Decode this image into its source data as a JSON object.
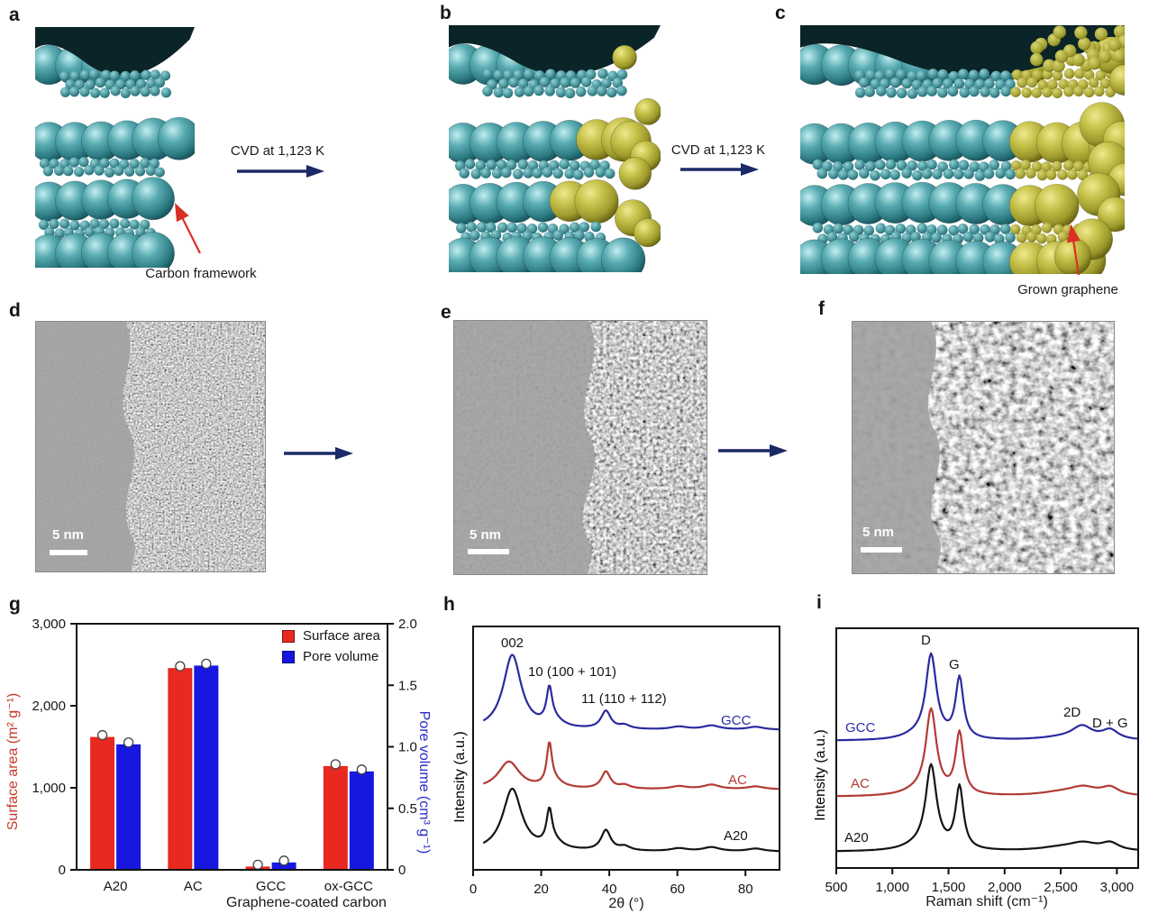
{
  "figure": {
    "panel_labels": {
      "a": "a",
      "b": "b",
      "c": "c",
      "d": "d",
      "e": "e",
      "f": "f",
      "g": "g",
      "h": "h",
      "i": "i"
    }
  },
  "schematic": {
    "cvd_arrow_1_label": "CVD at 1,123 K",
    "cvd_arrow_2_label": "CVD at 1,123 K",
    "carbon_framework_label": "Carbon framework",
    "grown_graphene_label": "Grown graphene",
    "colors": {
      "carbon_teal": "#4a9ca2",
      "carbon_teal_dark": "#1d606a",
      "graphene_yellow": "#b5b332",
      "graphene_yellow_dark": "#77750f",
      "process_arrow_navy": "#1b2a66",
      "annotation_arrow_red": "#d93025"
    }
  },
  "tem_panels": {
    "d": {
      "scale_bar_label": "5 nm"
    },
    "e": {
      "scale_bar_label": "5 nm"
    },
    "f": {
      "scale_bar_label": "5 nm"
    }
  },
  "chart_data": [
    {
      "id": "g",
      "type": "bar",
      "categories": [
        "A20",
        "AC",
        "GCC",
        "ox-GCC"
      ],
      "xlabel": "Graphene-coated carbon",
      "left_axis": {
        "label": "Surface area (m² g⁻¹)",
        "tick_labels": [
          "0",
          "1,000",
          "2,000",
          "3,000"
        ],
        "tick_values": [
          0,
          1000,
          2000,
          3000
        ],
        "range": [
          0,
          3000
        ],
        "label_color": "#c43a28"
      },
      "right_axis": {
        "label": "Pore volume (cm³ g⁻¹)",
        "tick_labels": [
          "0",
          "0.5",
          "1.0",
          "1.5",
          "2.0"
        ],
        "tick_values": [
          0,
          0.5,
          1.0,
          1.5,
          2.0
        ],
        "range": [
          0,
          2
        ],
        "label_color": "#2a2ac8"
      },
      "legend": [
        {
          "label": "Surface area",
          "color": "#e8291f"
        },
        {
          "label": "Pore volume",
          "color": "#1717e0"
        }
      ],
      "series": [
        {
          "name": "Surface area",
          "axis": "left",
          "color": "#e8291f",
          "values": [
            1620,
            2460,
            40,
            1265
          ]
        },
        {
          "name": "Pore volume",
          "axis": "right",
          "color": "#1717e0",
          "values": [
            1.02,
            1.66,
            0.06,
            0.8
          ]
        }
      ]
    },
    {
      "id": "h",
      "type": "line",
      "xlabel": "2θ (°)",
      "ylabel": "Intensity (a.u.)",
      "xtick_labels": [
        "0",
        "20",
        "40",
        "60",
        "80"
      ],
      "xtick_values": [
        0,
        20,
        40,
        60,
        80
      ],
      "xrange": [
        0,
        90
      ],
      "peak_annotations": [
        "002",
        "10 (100 + 101)",
        "11 (110 + 112)"
      ],
      "series": [
        {
          "name": "GCC",
          "color": "#2a2ba0",
          "peaks": [
            [
              11.5,
              3.2,
              0.92
            ],
            [
              22.4,
              1.0,
              0.42
            ],
            [
              24.0,
              3.0,
              0.08
            ],
            [
              39.0,
              1.7,
              0.22
            ],
            [
              44.5,
              2.0,
              0.045
            ],
            [
              60.5,
              3.0,
              0.035
            ],
            [
              70.0,
              3.0,
              0.05
            ],
            [
              83.0,
              3.0,
              0.035
            ]
          ]
        },
        {
          "name": "AC",
          "color": "#b23a35",
          "peaks": [
            [
              10.5,
              3.8,
              0.34
            ],
            [
              22.4,
              0.9,
              0.5
            ],
            [
              24.0,
              3.0,
              0.08
            ],
            [
              39.0,
              1.6,
              0.21
            ],
            [
              44.5,
              2.0,
              0.045
            ],
            [
              60.5,
              3.0,
              0.035
            ],
            [
              70.0,
              3.0,
              0.055
            ],
            [
              83.0,
              3.0,
              0.035
            ]
          ]
        },
        {
          "name": "A20",
          "color": "#141414",
          "peaks": [
            [
              11.5,
              3.4,
              0.77
            ],
            [
              22.4,
              1.0,
              0.42
            ],
            [
              24.0,
              3.0,
              0.08
            ],
            [
              39.0,
              1.7,
              0.25
            ],
            [
              44.5,
              2.0,
              0.05
            ],
            [
              60.5,
              3.0,
              0.035
            ],
            [
              70.0,
              3.0,
              0.05
            ],
            [
              83.0,
              3.0,
              0.035
            ]
          ]
        }
      ]
    },
    {
      "id": "i",
      "type": "line",
      "xlabel": "Raman shift (cm⁻¹)",
      "ylabel": "Intensity (a.u.)",
      "xtick_labels": [
        "500",
        "1,000",
        "1,500",
        "2,000",
        "2,500",
        "3,000"
      ],
      "xtick_values": [
        500,
        1000,
        1500,
        2000,
        2500,
        3000
      ],
      "xrange": [
        500,
        3190
      ],
      "peak_annotations": [
        "D",
        "G",
        "2D",
        "D + G"
      ],
      "series": [
        {
          "name": "GCC",
          "color": "#2a2ba0",
          "peaks": [
            [
              1345,
              58,
              0.97
            ],
            [
              1598,
              42,
              0.7
            ],
            [
              1200,
              150,
              0.04
            ],
            [
              2500,
              250,
              0.03
            ],
            [
              2690,
              110,
              0.15
            ],
            [
              2940,
              90,
              0.11
            ]
          ]
        },
        {
          "name": "AC",
          "color": "#b23a35",
          "peaks": [
            [
              1345,
              58,
              0.98
            ],
            [
              1598,
              42,
              0.71
            ],
            [
              1200,
              150,
              0.04
            ],
            [
              2500,
              250,
              0.04
            ],
            [
              2700,
              150,
              0.09
            ],
            [
              2940,
              95,
              0.09
            ]
          ]
        },
        {
          "name": "A20",
          "color": "#141414",
          "peaks": [
            [
              1345,
              60,
              0.97
            ],
            [
              1598,
              42,
              0.72
            ],
            [
              1200,
              150,
              0.04
            ],
            [
              2500,
              250,
              0.04
            ],
            [
              2700,
              150,
              0.08
            ],
            [
              2940,
              95,
              0.085
            ]
          ]
        }
      ]
    }
  ]
}
